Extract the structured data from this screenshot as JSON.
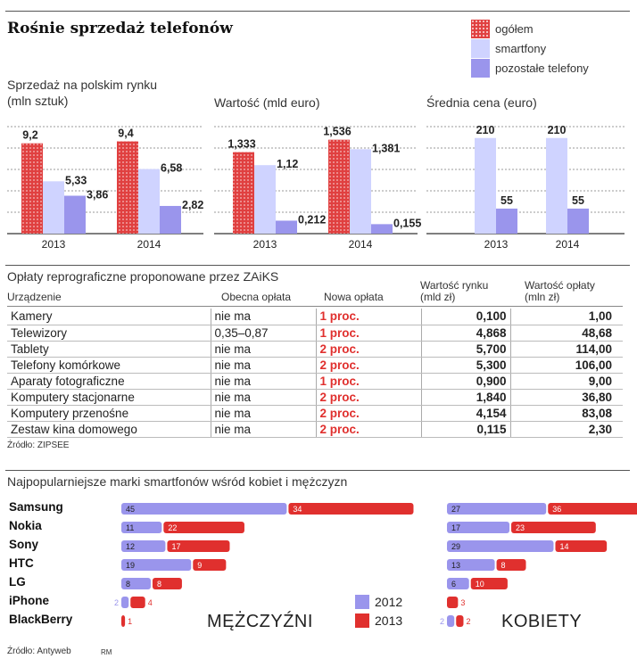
{
  "title": "Rośnie sprzedaż telefonów",
  "legend": [
    {
      "label": "ogółem",
      "key": "total"
    },
    {
      "label": "smartfony",
      "key": "smart"
    },
    {
      "label": "pozostałe telefony",
      "key": "other"
    }
  ],
  "colors": {
    "total": "#e04040",
    "smart": "#cfd3ff",
    "other": "#9a95ec",
    "red": "#e0302e",
    "purple": "#9a95ec"
  },
  "chart_labels": {
    "sales": "Sprzedaż na polskim rynku\n(mln sztuk)",
    "value": "Wartość (mld euro)",
    "price": "Średnia cena (euro)"
  },
  "chart_data": [
    {
      "type": "bar",
      "title": "Sprzedaż na polskim rynku (mln sztuk)",
      "categories": [
        "2013",
        "2014"
      ],
      "series": [
        {
          "name": "ogółem",
          "values": [
            9.2,
            9.4
          ],
          "labels": [
            "9,2",
            "9,4"
          ]
        },
        {
          "name": "smartfony",
          "values": [
            5.33,
            6.58
          ],
          "labels": [
            "5,33",
            "6,58"
          ]
        },
        {
          "name": "pozostałe telefony",
          "values": [
            3.86,
            2.82
          ],
          "labels": [
            "3,86",
            "2,82"
          ]
        }
      ],
      "ylim": [
        0,
        10
      ]
    },
    {
      "type": "bar",
      "title": "Wartość (mld euro)",
      "categories": [
        "2013",
        "2014"
      ],
      "series": [
        {
          "name": "ogółem",
          "values": [
            1.333,
            1.536
          ],
          "labels": [
            "1,333",
            "1,536"
          ]
        },
        {
          "name": "smartfony",
          "values": [
            1.12,
            1.381
          ],
          "labels": [
            "1,12",
            "1,381"
          ]
        },
        {
          "name": "pozostałe telefony",
          "values": [
            0.212,
            0.155
          ],
          "labels": [
            "0,212",
            "0,155"
          ]
        }
      ],
      "ylim": [
        0,
        1.8
      ]
    },
    {
      "type": "bar",
      "title": "Średnia cena (euro)",
      "categories": [
        "2013",
        "2014"
      ],
      "series": [
        {
          "name": "smartfony",
          "values": [
            210,
            210
          ],
          "labels": [
            "210",
            "210"
          ]
        },
        {
          "name": "pozostałe telefony",
          "values": [
            55,
            55
          ],
          "labels": [
            "55",
            "55"
          ]
        }
      ],
      "ylim": [
        0,
        240
      ]
    },
    {
      "type": "bar",
      "title": "Najpopularniejsze marki smartfonów wśród kobiet i mężczyzn",
      "categories": [
        "Samsung",
        "Nokia",
        "Sony",
        "HTC",
        "LG",
        "iPhone",
        "BlackBerry"
      ],
      "groups": [
        {
          "name": "MĘŻCZYŹNI",
          "series": [
            {
              "name": "2012",
              "values": [
                45,
                11,
                12,
                19,
                8,
                2,
                0
              ]
            },
            {
              "name": "2013",
              "values": [
                34,
                22,
                17,
                9,
                8,
                4,
                1
              ]
            }
          ]
        },
        {
          "name": "KOBIETY",
          "series": [
            {
              "name": "2012",
              "values": [
                27,
                17,
                29,
                13,
                6,
                0,
                2
              ]
            },
            {
              "name": "2013",
              "values": [
                36,
                23,
                14,
                8,
                10,
                3,
                2
              ]
            }
          ]
        }
      ]
    }
  ],
  "fees": {
    "title": "Opłaty reprograficzne proponowane przez ZAiKS",
    "headers": [
      "Urządzenie",
      "Obecna opłata",
      "Nowa opłata",
      "Wartość rynku\n(mld zł)",
      "Wartość opłaty\n(mln zł)"
    ],
    "rows": [
      [
        "Kamery",
        "nie ma",
        "1 proc.",
        "0,100",
        "1,00"
      ],
      [
        "Telewizory",
        "0,35–0,87",
        "1 proc.",
        "4,868",
        "48,68"
      ],
      [
        "Tablety",
        "nie ma",
        "2 proc.",
        "5,700",
        "114,00"
      ],
      [
        "Telefony komórkowe",
        "nie ma",
        "2 proc.",
        "5,300",
        "106,00"
      ],
      [
        "Aparaty fotograficzne",
        "nie ma",
        "1 proc.",
        "0,900",
        "9,00"
      ],
      [
        "Komputery stacjonarne",
        "nie ma",
        "2 proc.",
        "1,840",
        "36,80"
      ],
      [
        "Komputery przenośne",
        "nie ma",
        "2 proc.",
        "4,154",
        "83,08"
      ],
      [
        "Zestaw kina domowego",
        "nie ma",
        "2 proc.",
        "0,115",
        "2,30"
      ]
    ],
    "source": "Źródło: ZIPSEE"
  },
  "brands": {
    "title": "Najpopularniejsze marki smartfonów wśród kobiet i mężczyzn",
    "men_label": "MĘŻCZYŹNI",
    "women_label": "KOBIETY",
    "legend_years": [
      "2012",
      "2013"
    ],
    "source": "Źródło: Antyweb",
    "credit": "RM"
  }
}
